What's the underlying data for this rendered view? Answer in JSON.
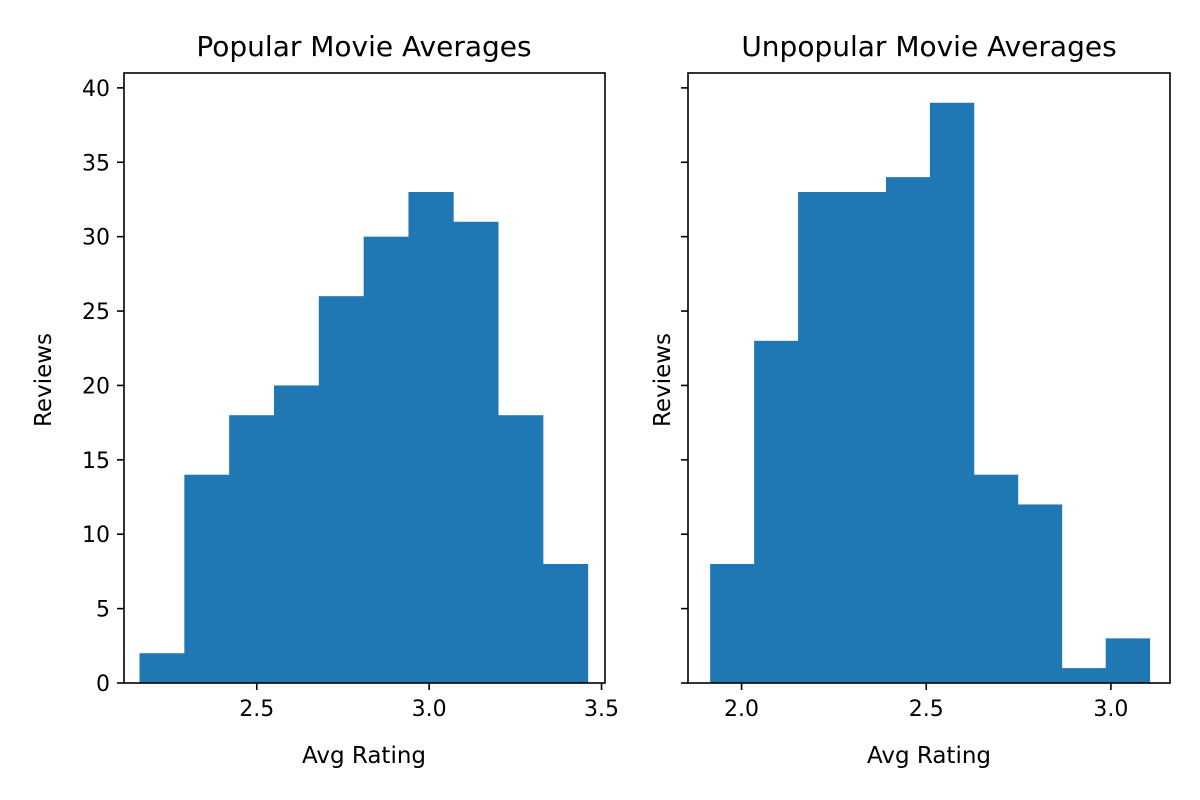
{
  "chart_data": [
    {
      "type": "bar",
      "title": "Popular Movie Averages",
      "xlabel": "Avg Rating",
      "ylabel": "Reviews",
      "xlim": [
        2.115,
        3.51
      ],
      "ylim": [
        0,
        41
      ],
      "xticks": [
        "2.5",
        "3.0",
        "3.5"
      ],
      "yticks": [
        "0",
        "5",
        "10",
        "15",
        "20",
        "25",
        "30",
        "35",
        "40"
      ],
      "bin_edges": [
        2.16,
        2.29,
        2.42,
        2.55,
        2.68,
        2.81,
        2.94,
        3.07,
        3.2,
        3.33,
        3.46
      ],
      "values": [
        2,
        14,
        18,
        20,
        26,
        30,
        33,
        31,
        18,
        8
      ],
      "grid": false,
      "color": "#1f77b4"
    },
    {
      "type": "bar",
      "title": "Unpopular Movie Averages",
      "xlabel": "Avg Rating",
      "ylabel": "Reviews",
      "xlim": [
        1.855,
        3.16
      ],
      "ylim": [
        0,
        41
      ],
      "xticks": [
        "2.0",
        "2.5",
        "3.0"
      ],
      "yticks": [],
      "bin_edges": [
        1.915,
        2.034,
        2.153,
        2.272,
        2.391,
        2.51,
        2.629,
        2.748,
        2.867,
        2.986,
        3.105
      ],
      "values": [
        8,
        23,
        33,
        33,
        34,
        39,
        14,
        12,
        1,
        3
      ],
      "grid": false,
      "color": "#1f77b4"
    }
  ]
}
